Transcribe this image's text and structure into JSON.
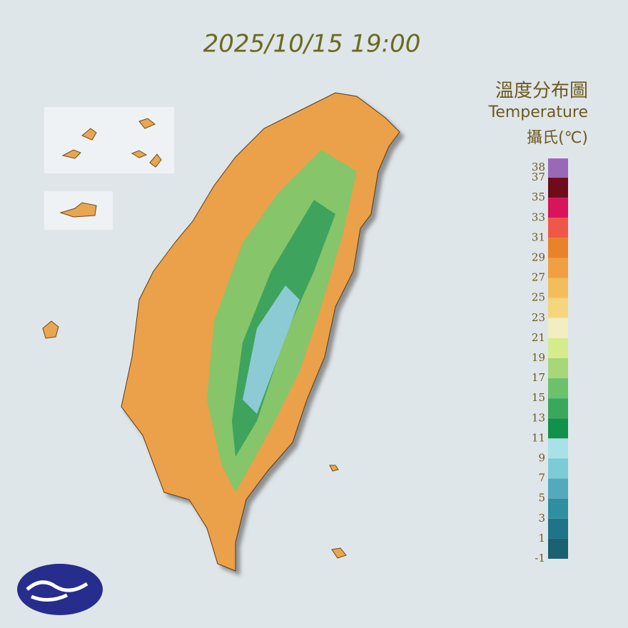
{
  "title": "2025/10/15 19:00",
  "legend": {
    "title": "溫度分布圖",
    "subtitle": "Temperature",
    "unit": "攝氏(℃)",
    "labels": [
      38,
      37,
      35,
      33,
      31,
      29,
      27,
      25,
      23,
      21,
      19,
      17,
      15,
      13,
      11,
      9,
      7,
      5,
      3,
      1,
      -1
    ],
    "colors": [
      "#9a68b6",
      "#6e0c1c",
      "#d8145a",
      "#ef5848",
      "#e98228",
      "#f0a042",
      "#f3bd5c",
      "#f6d67c",
      "#f2eec2",
      "#d4ec8c",
      "#a6d778",
      "#6cc26a",
      "#3aa85a",
      "#13904a",
      "#a8e2e8",
      "#7ccbd6",
      "#54aabd",
      "#2f8ea0",
      "#1f7488",
      "#186272"
    ]
  }
}
